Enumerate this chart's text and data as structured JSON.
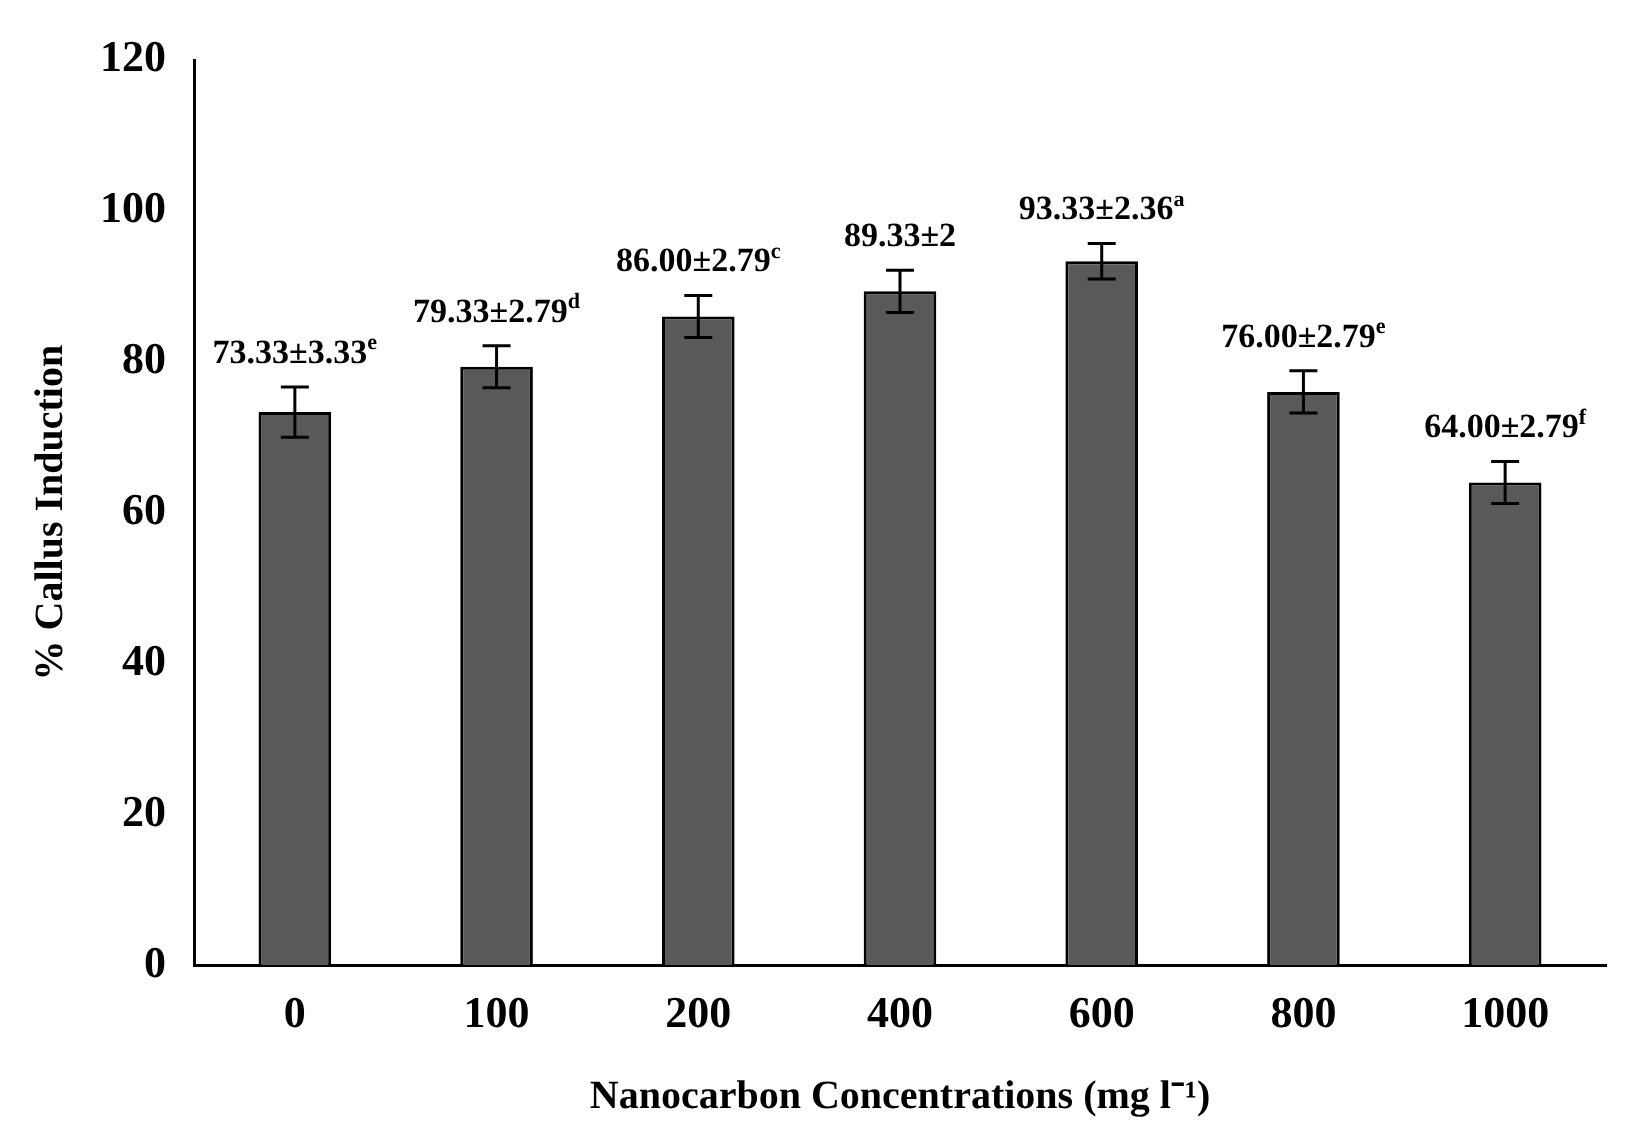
{
  "chart_data": {
    "type": "bar",
    "xlabel": "Nanocarbon Concentrations (mg l⁻¹)",
    "ylabel": "% Callus Induction",
    "categories": [
      "0",
      "100",
      "200",
      "400",
      "600",
      "800",
      "1000"
    ],
    "values": [
      73.33,
      79.33,
      86.0,
      89.33,
      93.33,
      76.0,
      64.0
    ],
    "errors": [
      3.33,
      2.79,
      2.79,
      2.79,
      2.36,
      2.79,
      2.79
    ],
    "value_labels": [
      "73.33±3.33$^{e}$",
      "79.33±2.79$^{d}$",
      "86.00±2.79$^{c}$",
      "89.33±2",
      "93.33±2.36$^{a}$",
      "76.00±2.79$^{e}$",
      "64.00±2.79$^{f}$"
    ],
    "color": "#595959",
    "ylim": [
      0,
      120
    ],
    "yticks": [
      0,
      20,
      40,
      60,
      80,
      100,
      120
    ],
    "grid": false,
    "legend": false
  }
}
